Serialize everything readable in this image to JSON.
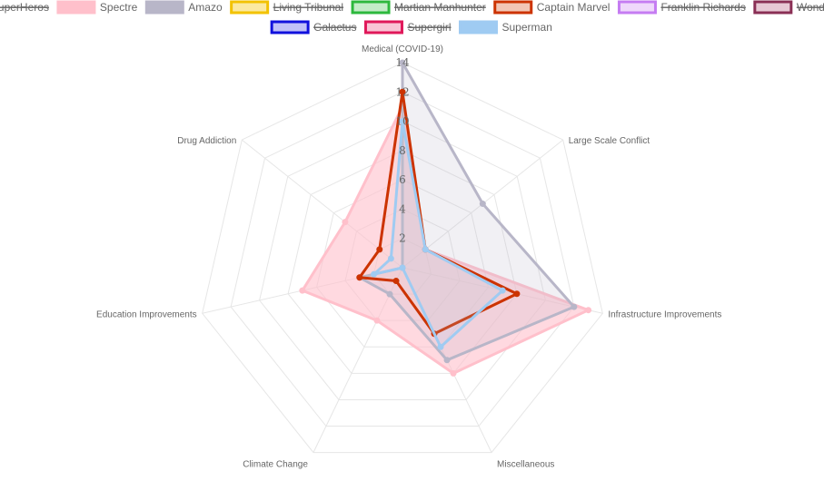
{
  "chart_data": {
    "type": "radar",
    "axes": [
      "Medical (COVID-19)",
      "Large Scale Conflict",
      "Infrastructure Improvements",
      "Miscellaneous",
      "Climate Change",
      "Education Improvements",
      "Drug Addiction"
    ],
    "r_ticks": [
      "2",
      "4",
      "6",
      "8",
      "10",
      "12",
      "14"
    ],
    "rlim": [
      0,
      14
    ],
    "grid": true,
    "legend_position": "top",
    "series": [
      {
        "name": "SuperHeros",
        "hidden": true,
        "color": "#e8453c",
        "fill": "#f6c5c2",
        "values": null
      },
      {
        "name": "Spectre",
        "hidden": false,
        "color": "#ffc0cb",
        "fill": "#ffc0cb",
        "opacity": 0.6,
        "values": [
          11,
          2,
          13,
          8,
          4,
          7,
          5
        ]
      },
      {
        "name": "Amazo",
        "hidden": false,
        "color": "#b8b6c8",
        "fill": "#b8b6c8",
        "opacity": 0.2,
        "values": [
          14,
          7,
          12,
          7,
          2,
          3,
          0
        ]
      },
      {
        "name": "Living Tribunal",
        "hidden": true,
        "color": "#f2c200",
        "fill": "#fbe9a0",
        "values": null
      },
      {
        "name": "Martian Manhunter",
        "hidden": true,
        "color": "#2db83d",
        "fill": "#c4ecc8",
        "values": null
      },
      {
        "name": "Captain Marvel",
        "hidden": false,
        "color": "#cc3300",
        "fill": "#f2c6b5",
        "opacity": 0.15,
        "values": [
          12,
          2,
          8,
          5,
          1,
          3,
          2
        ]
      },
      {
        "name": "Franklin Richards",
        "hidden": true,
        "color": "#c57cf2",
        "fill": "#efd8fb",
        "values": null
      },
      {
        "name": "Wonder Woman",
        "hidden": true,
        "color": "#8a2f55",
        "fill": "#e7c8d4",
        "values": null
      },
      {
        "name": "Galactus",
        "hidden": true,
        "color": "#1010dd",
        "fill": "#c0c0f8",
        "values": null
      },
      {
        "name": "Supergirl",
        "hidden": true,
        "color": "#e0185a",
        "fill": "#f9c5d6",
        "values": null
      },
      {
        "name": "Superman",
        "hidden": false,
        "color": "#9fcbf2",
        "fill": "#9fcbf2",
        "opacity": 0.15,
        "values": [
          10,
          2,
          7,
          6,
          0,
          2,
          1
        ]
      }
    ]
  }
}
